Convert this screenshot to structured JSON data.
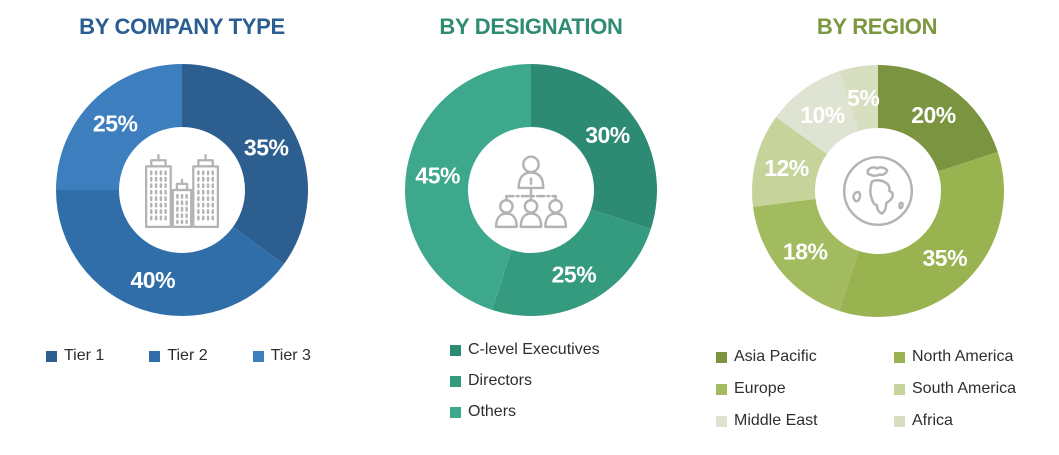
{
  "page": {
    "background": "#FFFFFF"
  },
  "chart_data": [
    {
      "type": "pie",
      "subtype": "donut",
      "title": "BY COMPANY TYPE",
      "title_color": "#2A5D92",
      "center_icon": "buildings-icon",
      "legend_layout": "row",
      "legend_position": "bottom",
      "start_angle_deg": 0,
      "direction": "clockwise",
      "label_color": "#FFFFFF",
      "slices": [
        {
          "name": "Tier 1",
          "value": 35,
          "percent_label": "35%",
          "color": "#2C5E90"
        },
        {
          "name": "Tier 2",
          "value": 40,
          "percent_label": "40%",
          "color": "#2F6EA9"
        },
        {
          "name": "Tier 3",
          "value": 25,
          "percent_label": "25%",
          "color": "#3C7EBE"
        }
      ]
    },
    {
      "type": "pie",
      "subtype": "donut",
      "title": "BY DESIGNATION",
      "title_color": "#2F8C72",
      "center_icon": "org-chart-icon",
      "legend_layout": "column",
      "legend_position": "bottom",
      "start_angle_deg": 0,
      "direction": "clockwise",
      "label_color": "#FFFFFF",
      "slices": [
        {
          "name": "C-level Executives",
          "value": 30,
          "percent_label": "30%",
          "color": "#2C8B72"
        },
        {
          "name": "Directors",
          "value": 25,
          "percent_label": "25%",
          "color": "#349B7F"
        },
        {
          "name": "Others",
          "value": 45,
          "percent_label": "45%",
          "color": "#3EA88C"
        }
      ]
    },
    {
      "type": "pie",
      "subtype": "donut",
      "title": "BY REGION",
      "title_color": "#7B973F",
      "center_icon": "globe-icon",
      "legend_layout": "grid-2",
      "legend_position": "bottom",
      "start_angle_deg": 0,
      "direction": "clockwise",
      "label_color": "#FFFFFF",
      "slices": [
        {
          "name": "Asia Pacific",
          "value": 20,
          "percent_label": "20%",
          "color": "#7A9440"
        },
        {
          "name": "North America",
          "value": 35,
          "percent_label": "35%",
          "color": "#99B351"
        },
        {
          "name": "Europe",
          "value": 18,
          "percent_label": "18%",
          "color": "#A3BB5F"
        },
        {
          "name": "South America",
          "value": 12,
          "percent_label": "12%",
          "color": "#C6D49C"
        },
        {
          "name": "Middle East",
          "value": 10,
          "percent_label": "10%",
          "color": "#DFE3D1"
        },
        {
          "name": "Africa",
          "value": 5,
          "percent_label": "5%",
          "color": "#D7DFC0"
        }
      ]
    }
  ]
}
